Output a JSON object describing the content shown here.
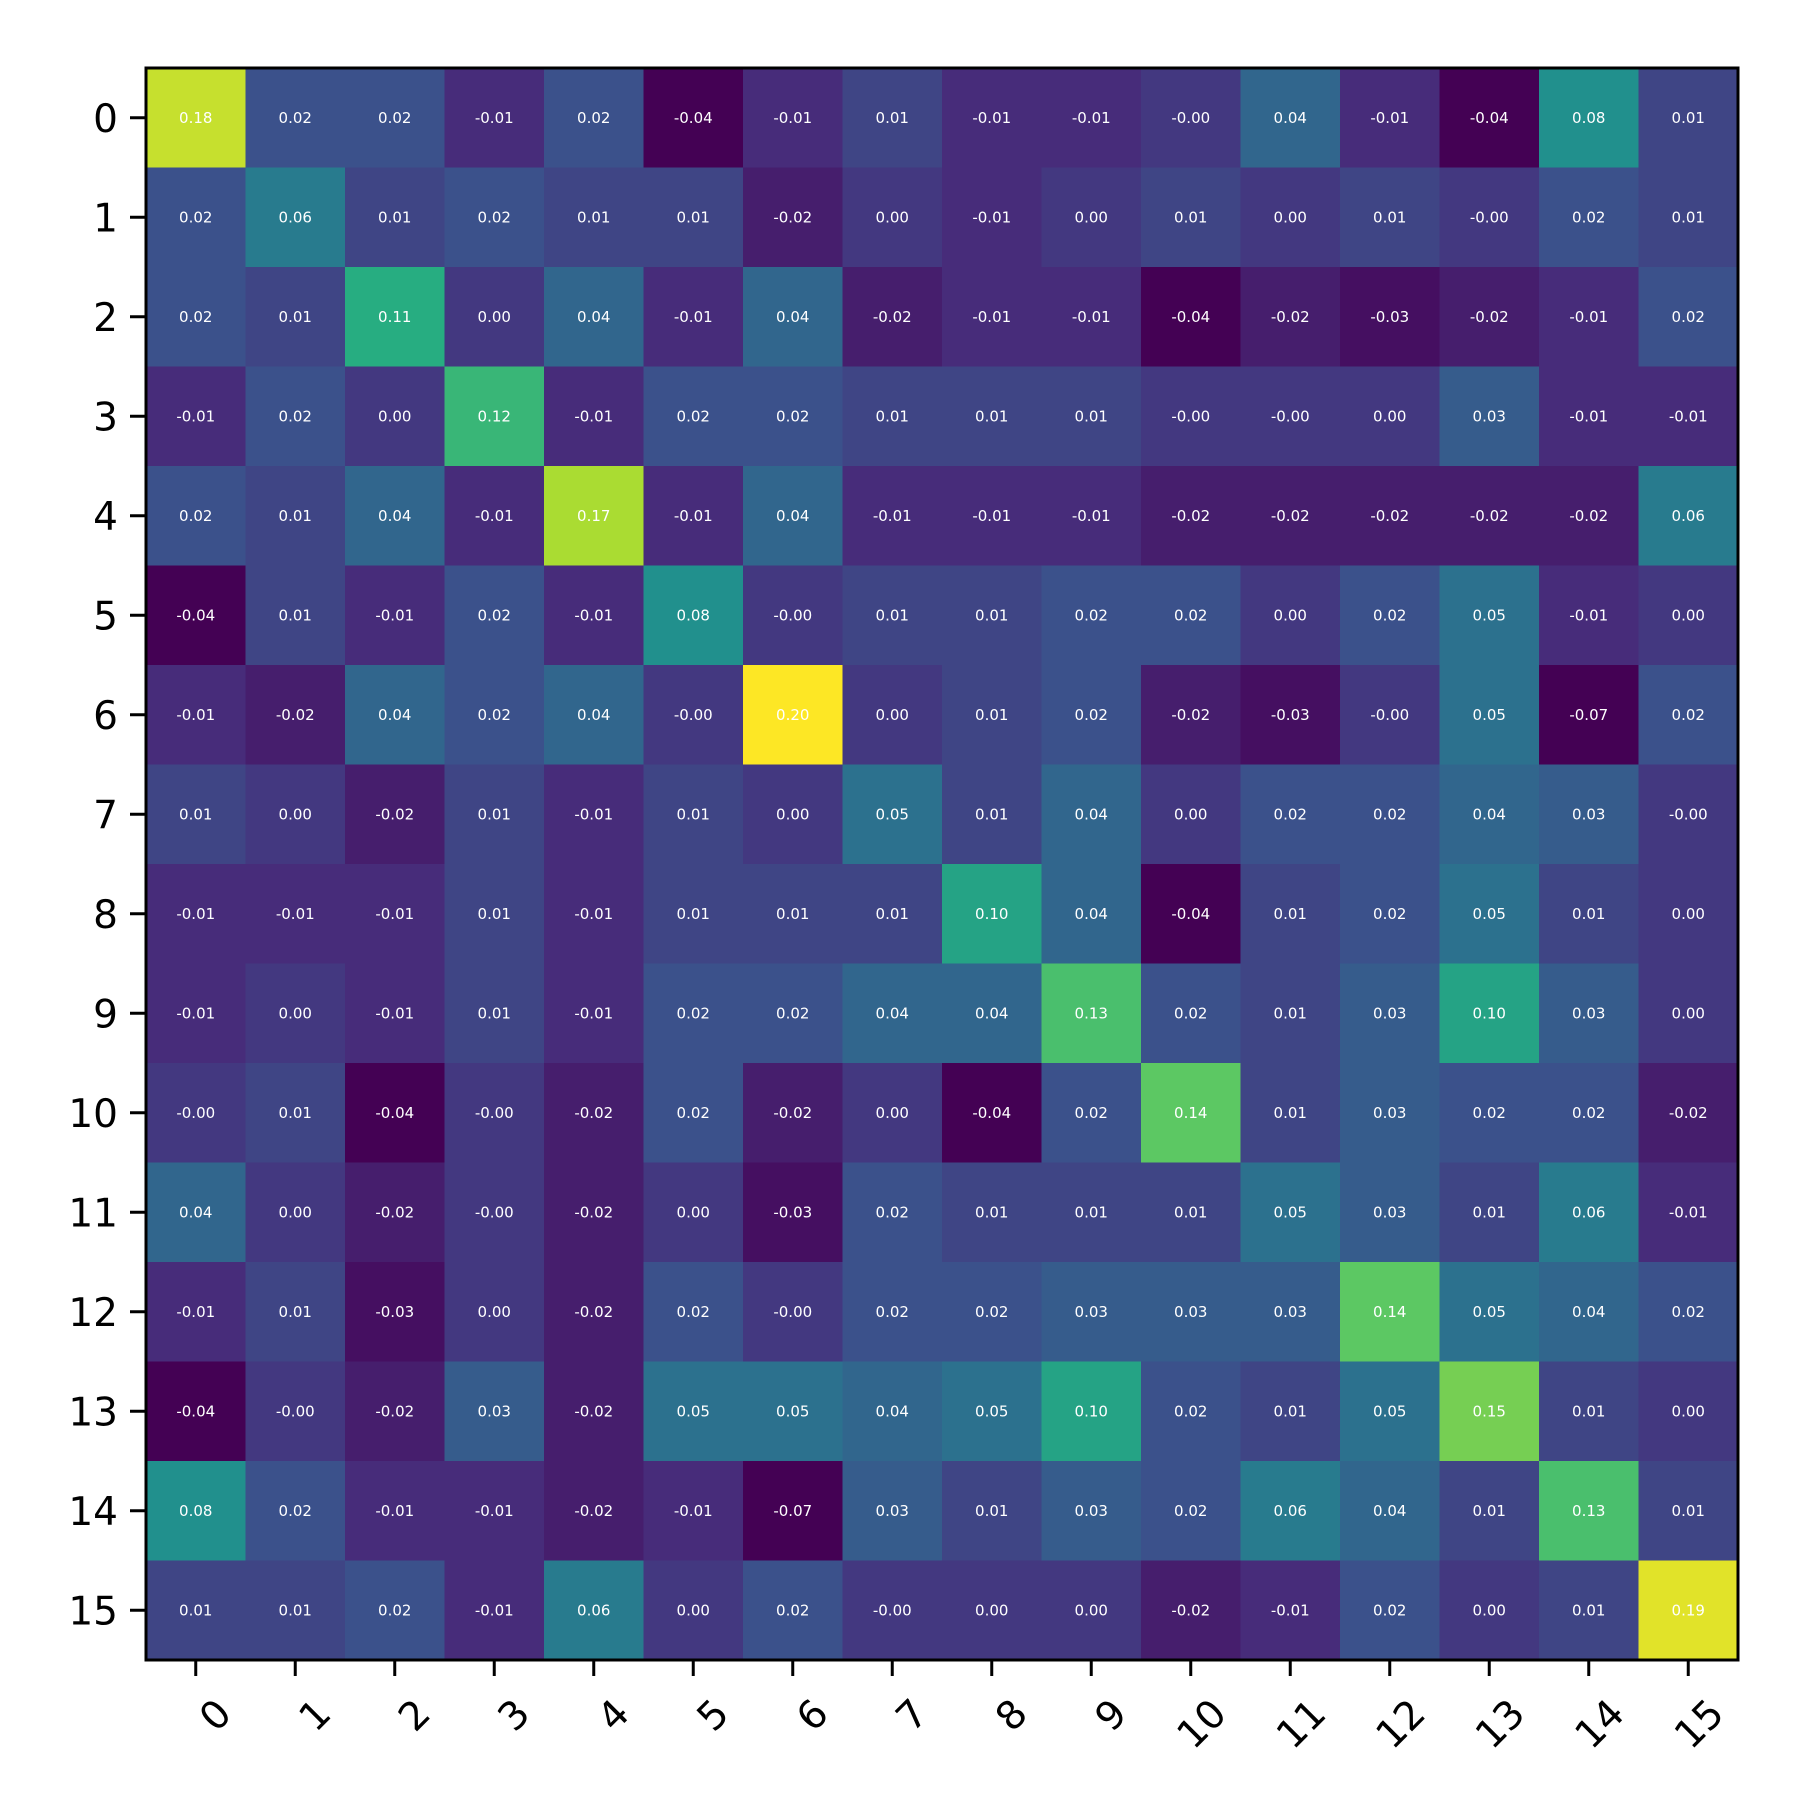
{
  "chart_data": {
    "type": "heatmap",
    "title": "",
    "xlabel": "",
    "ylabel": "",
    "x_categories": [
      "0",
      "1",
      "2",
      "3",
      "4",
      "5",
      "6",
      "7",
      "8",
      "9",
      "10",
      "11",
      "12",
      "13",
      "14",
      "15"
    ],
    "y_categories": [
      "0",
      "1",
      "2",
      "3",
      "4",
      "5",
      "6",
      "7",
      "8",
      "9",
      "10",
      "11",
      "12",
      "13",
      "14",
      "15"
    ],
    "colormap": "viridis",
    "value_range": [
      -0.04,
      0.2
    ],
    "grid": false,
    "legend": "none",
    "cell_label_color": "#ffffff",
    "values": [
      [
        0.18,
        0.02,
        0.02,
        -0.01,
        0.02,
        -0.04,
        -0.01,
        0.01,
        -0.01,
        -0.01,
        -0.0,
        0.04,
        -0.01,
        -0.04,
        0.08,
        0.01
      ],
      [
        0.02,
        0.06,
        0.01,
        0.02,
        0.01,
        0.01,
        -0.02,
        0.0,
        -0.01,
        0.0,
        0.01,
        0.0,
        0.01,
        -0.0,
        0.02,
        0.01
      ],
      [
        0.02,
        0.01,
        0.11,
        0.0,
        0.04,
        -0.01,
        0.04,
        -0.02,
        -0.01,
        -0.01,
        -0.04,
        -0.02,
        -0.03,
        -0.02,
        -0.01,
        0.02
      ],
      [
        -0.01,
        0.02,
        0.0,
        0.12,
        -0.01,
        0.02,
        0.02,
        0.01,
        0.01,
        0.01,
        -0.0,
        -0.0,
        0.0,
        0.03,
        -0.01,
        -0.01
      ],
      [
        0.02,
        0.01,
        0.04,
        -0.01,
        0.17,
        -0.01,
        0.04,
        -0.01,
        -0.01,
        -0.01,
        -0.02,
        -0.02,
        -0.02,
        -0.02,
        -0.02,
        0.06
      ],
      [
        -0.04,
        0.01,
        -0.01,
        0.02,
        -0.01,
        0.08,
        -0.0,
        0.01,
        0.01,
        0.02,
        0.02,
        0.0,
        0.02,
        0.05,
        -0.01,
        0.0
      ],
      [
        -0.01,
        -0.02,
        0.04,
        0.02,
        0.04,
        -0.0,
        0.2,
        0.0,
        0.01,
        0.02,
        -0.02,
        -0.03,
        -0.0,
        0.05,
        -0.07,
        0.02
      ],
      [
        0.01,
        0.0,
        -0.02,
        0.01,
        -0.01,
        0.01,
        0.0,
        0.05,
        0.01,
        0.04,
        0.0,
        0.02,
        0.02,
        0.04,
        0.03,
        -0.0
      ],
      [
        -0.01,
        -0.01,
        -0.01,
        0.01,
        -0.01,
        0.01,
        0.01,
        0.01,
        0.1,
        0.04,
        -0.04,
        0.01,
        0.02,
        0.05,
        0.01,
        0.0
      ],
      [
        -0.01,
        0.0,
        -0.01,
        0.01,
        -0.01,
        0.02,
        0.02,
        0.04,
        0.04,
        0.13,
        0.02,
        0.01,
        0.03,
        0.1,
        0.03,
        0.0
      ],
      [
        -0.0,
        0.01,
        -0.04,
        -0.0,
        -0.02,
        0.02,
        -0.02,
        0.0,
        -0.04,
        0.02,
        0.14,
        0.01,
        0.03,
        0.02,
        0.02,
        -0.02
      ],
      [
        0.04,
        0.0,
        -0.02,
        -0.0,
        -0.02,
        0.0,
        -0.03,
        0.02,
        0.01,
        0.01,
        0.01,
        0.05,
        0.03,
        0.01,
        0.06,
        -0.01
      ],
      [
        -0.01,
        0.01,
        -0.03,
        0.0,
        -0.02,
        0.02,
        -0.0,
        0.02,
        0.02,
        0.03,
        0.03,
        0.03,
        0.14,
        0.05,
        0.04,
        0.02
      ],
      [
        -0.04,
        -0.0,
        -0.02,
        0.03,
        -0.02,
        0.05,
        0.05,
        0.04,
        0.05,
        0.1,
        0.02,
        0.01,
        0.05,
        0.15,
        0.01,
        0.0
      ],
      [
        0.08,
        0.02,
        -0.01,
        -0.01,
        -0.02,
        -0.01,
        -0.07,
        0.03,
        0.01,
        0.03,
        0.02,
        0.06,
        0.04,
        0.01,
        0.13,
        0.01
      ],
      [
        0.01,
        0.01,
        0.02,
        -0.01,
        0.06,
        0.0,
        0.02,
        -0.0,
        0.0,
        0.0,
        -0.02,
        -0.01,
        0.02,
        0.0,
        0.01,
        0.19
      ]
    ]
  }
}
